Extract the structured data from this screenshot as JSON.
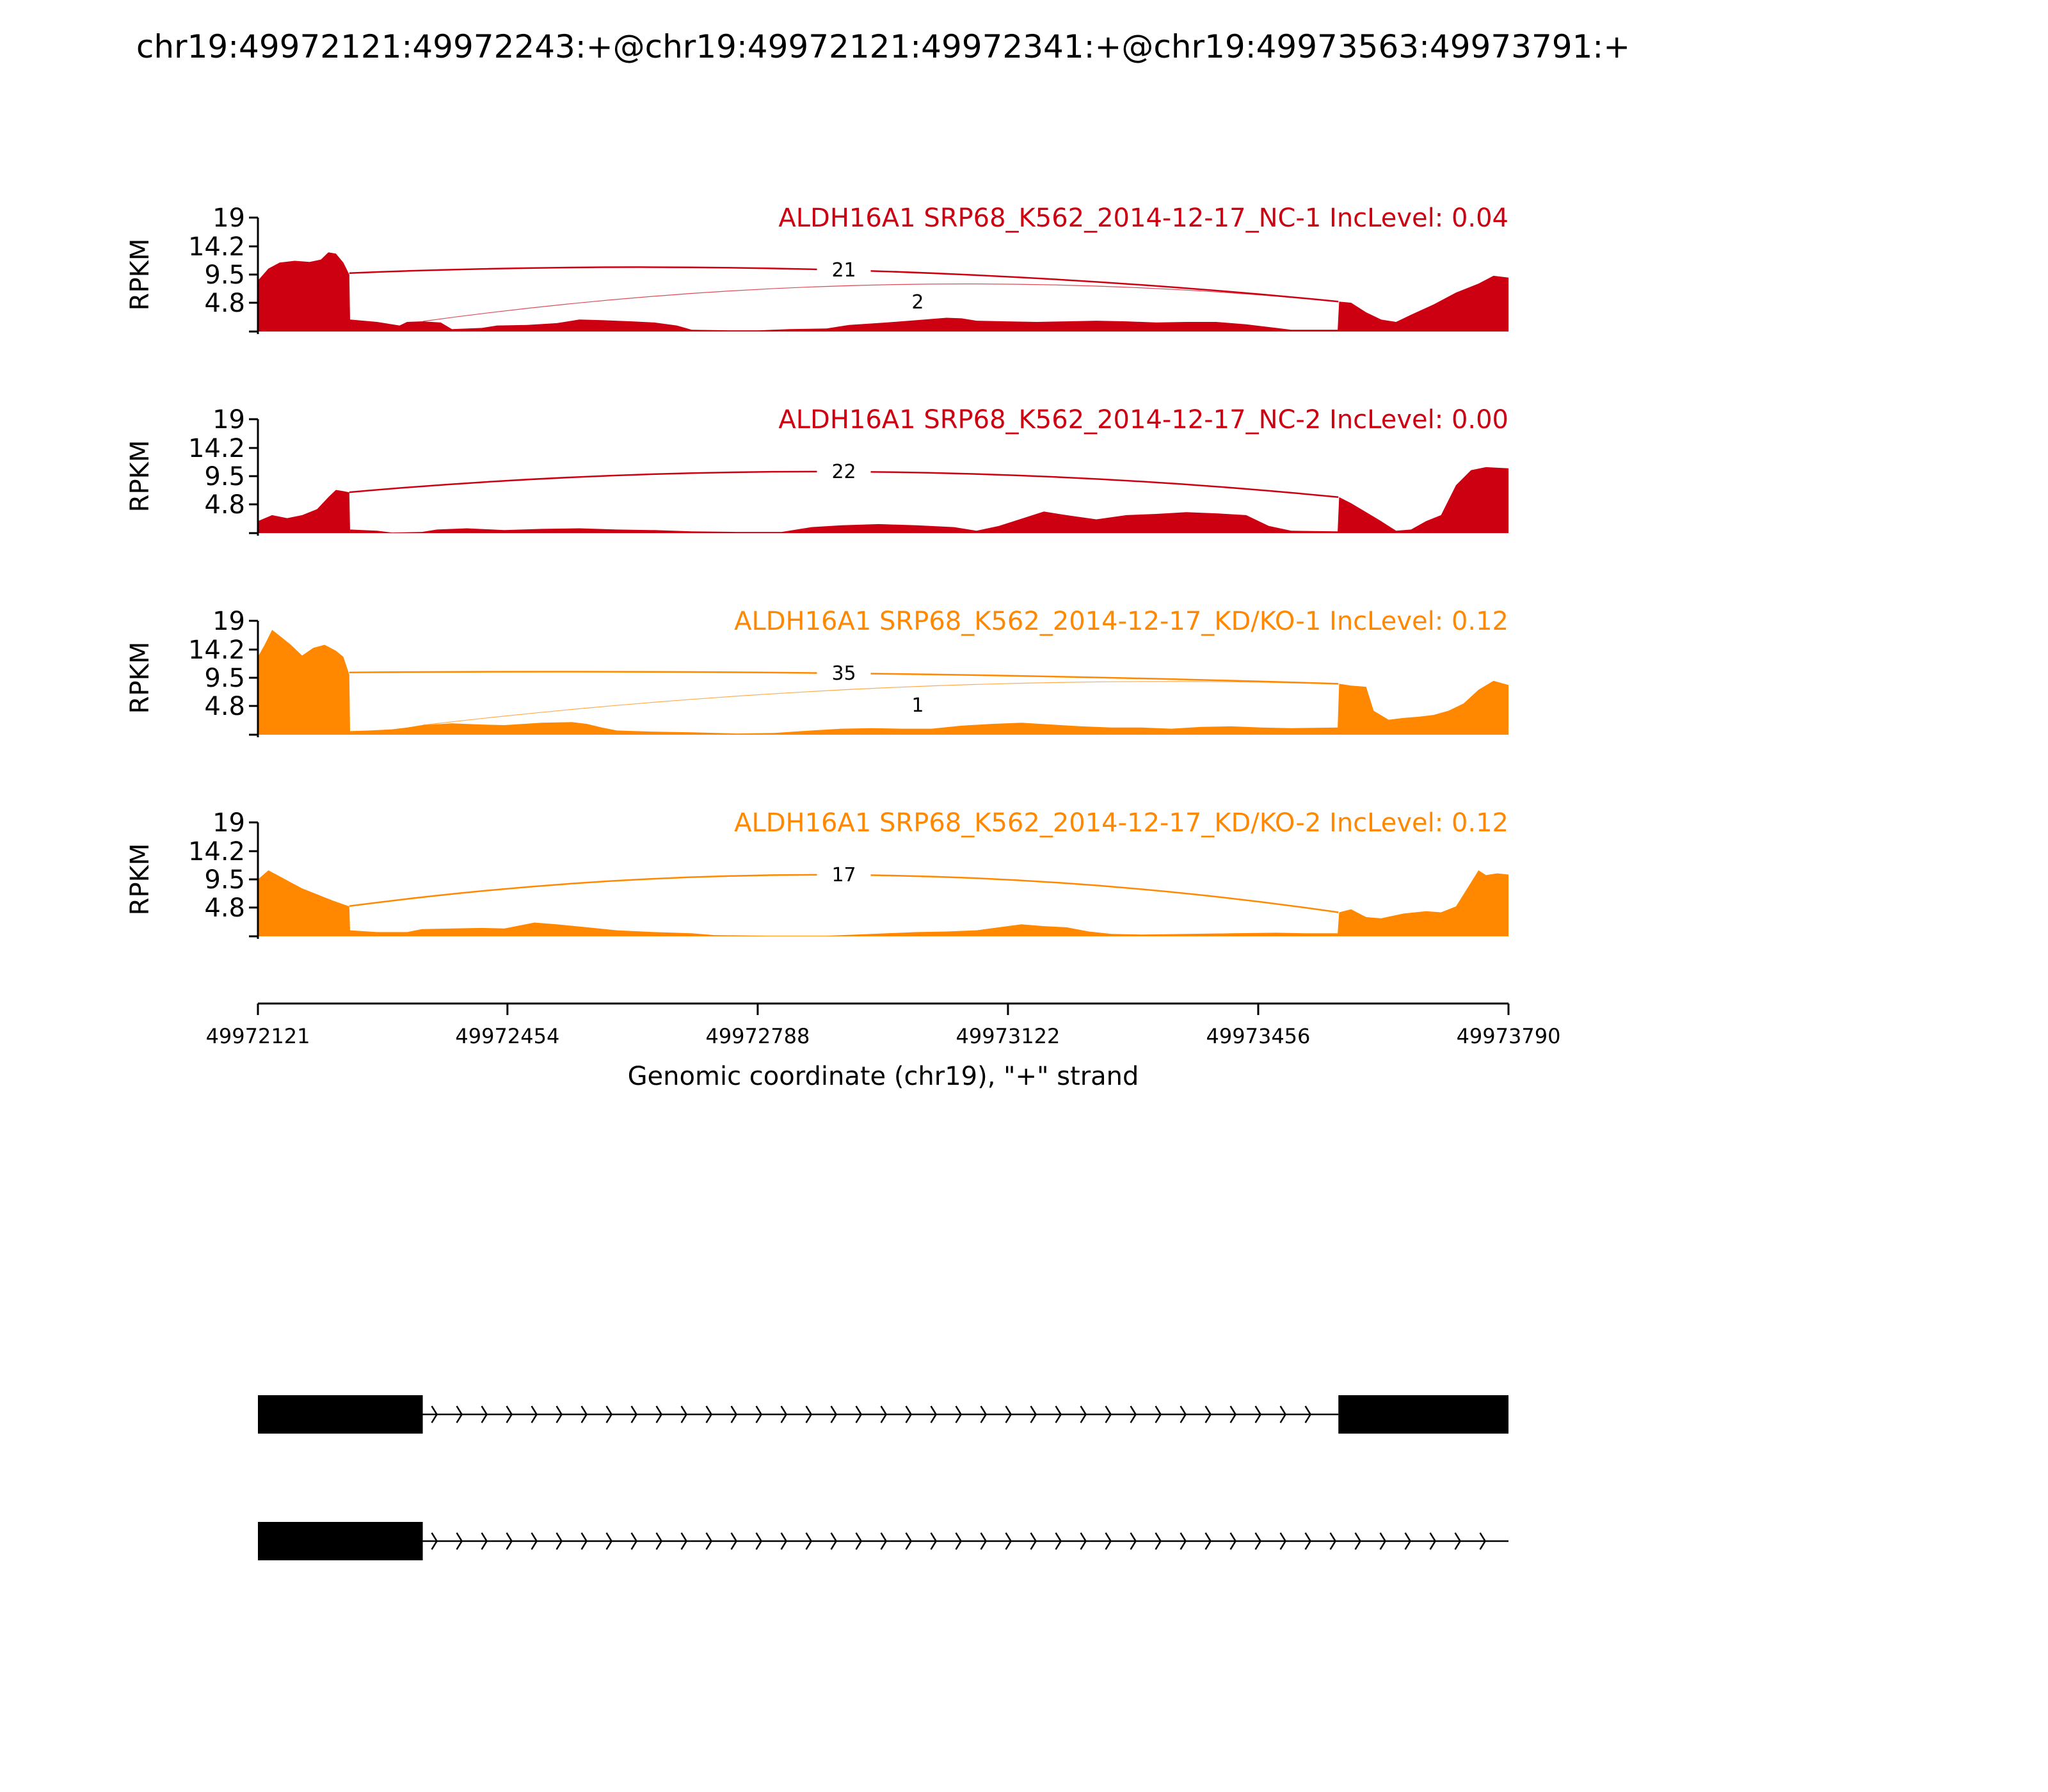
{
  "title": "chr19:49972121:49972243:+@chr19:49972121:49972341:+@chr19:49973563:49973791:+",
  "colors": {
    "nc": "#cc0011",
    "kd": "#ff8800",
    "axis": "#000000",
    "gene": "#000000"
  },
  "x_axis": {
    "label": "Genomic coordinate (chr19), \"+\" strand",
    "ticks": [
      49972121,
      49972454,
      49972788,
      49973122,
      49973456,
      49973790
    ],
    "tick_labels": [
      "49972121",
      "49972454",
      "49972788",
      "49973122",
      "49973456",
      "49973790"
    ]
  },
  "y_axis": {
    "label": "RPKM",
    "ticks": [
      4.8,
      9.5,
      14.2,
      19
    ],
    "tick_labels": [
      "4.8",
      "9.5",
      "14.2",
      "19"
    ]
  },
  "chart_data": {
    "type": "area",
    "xlim": [
      49972121,
      49973790
    ],
    "ylim": [
      0,
      19
    ],
    "tracks": [
      {
        "name": "ALDH16A1 SRP68_K562_2014-12-17_NC-1 IncLevel: 0.04",
        "group": "nc",
        "profile": [
          [
            49972121,
            8.5
          ],
          [
            49972135,
            10.5
          ],
          [
            49972150,
            11.5
          ],
          [
            49972170,
            11.8
          ],
          [
            49972190,
            11.6
          ],
          [
            49972205,
            12.0
          ],
          [
            49972215,
            13.2
          ],
          [
            49972225,
            13.0
          ],
          [
            49972235,
            11.5
          ],
          [
            49972243,
            9.5
          ],
          [
            49972244,
            2.0
          ],
          [
            49972280,
            1.6
          ],
          [
            49972310,
            1.0
          ],
          [
            49972320,
            1.6
          ],
          [
            49972340,
            1.7
          ],
          [
            49972365,
            1.5
          ],
          [
            49972380,
            0.4
          ],
          [
            49972420,
            0.6
          ],
          [
            49972440,
            1.0
          ],
          [
            49972480,
            1.1
          ],
          [
            49972520,
            1.4
          ],
          [
            49972550,
            2.0
          ],
          [
            49972580,
            1.9
          ],
          [
            49972620,
            1.7
          ],
          [
            49972650,
            1.5
          ],
          [
            49972680,
            1.0
          ],
          [
            49972700,
            0.3
          ],
          [
            49972750,
            0.2
          ],
          [
            49972790,
            0.2
          ],
          [
            49972830,
            0.4
          ],
          [
            49972880,
            0.5
          ],
          [
            49972910,
            1.1
          ],
          [
            49972960,
            1.5
          ],
          [
            49973000,
            1.9
          ],
          [
            49973040,
            2.3
          ],
          [
            49973060,
            2.2
          ],
          [
            49973080,
            1.8
          ],
          [
            49973120,
            1.7
          ],
          [
            49973160,
            1.6
          ],
          [
            49973200,
            1.7
          ],
          [
            49973240,
            1.8
          ],
          [
            49973280,
            1.7
          ],
          [
            49973320,
            1.5
          ],
          [
            49973360,
            1.6
          ],
          [
            49973400,
            1.6
          ],
          [
            49973440,
            1.2
          ],
          [
            49973480,
            0.6
          ],
          [
            49973500,
            0.3
          ],
          [
            49973562,
            0.3
          ],
          [
            49973564,
            5.0
          ],
          [
            49973580,
            4.8
          ],
          [
            49973600,
            3.2
          ],
          [
            49973620,
            2.0
          ],
          [
            49973640,
            1.6
          ],
          [
            49973660,
            2.8
          ],
          [
            49973690,
            4.5
          ],
          [
            49973720,
            6.5
          ],
          [
            49973750,
            8.0
          ],
          [
            49973770,
            9.3
          ],
          [
            49973790,
            9.0
          ]
        ],
        "junctions": [
          {
            "from": 49972243,
            "to": 49973563,
            "count": "21"
          },
          {
            "from": 49972341,
            "to": 49973563,
            "count": "2"
          }
        ]
      },
      {
        "name": "ALDH16A1 SRP68_K562_2014-12-17_NC-2 IncLevel: 0.00",
        "group": "nc",
        "profile": [
          [
            49972121,
            2.0
          ],
          [
            49972140,
            3.0
          ],
          [
            49972160,
            2.5
          ],
          [
            49972180,
            3.0
          ],
          [
            49972200,
            4.0
          ],
          [
            49972215,
            6.0
          ],
          [
            49972225,
            7.2
          ],
          [
            49972235,
            7.0
          ],
          [
            49972243,
            6.8
          ],
          [
            49972244,
            0.6
          ],
          [
            49972280,
            0.4
          ],
          [
            49972300,
            0.1
          ],
          [
            49972340,
            0.2
          ],
          [
            49972360,
            0.6
          ],
          [
            49972400,
            0.8
          ],
          [
            49972450,
            0.5
          ],
          [
            49972500,
            0.7
          ],
          [
            49972550,
            0.8
          ],
          [
            49972600,
            0.6
          ],
          [
            49972650,
            0.5
          ],
          [
            49972700,
            0.3
          ],
          [
            49972760,
            0.2
          ],
          [
            49972820,
            0.2
          ],
          [
            49972860,
            1.0
          ],
          [
            49972900,
            1.3
          ],
          [
            49972950,
            1.5
          ],
          [
            49973000,
            1.3
          ],
          [
            49973050,
            1.0
          ],
          [
            49973080,
            0.4
          ],
          [
            49973110,
            1.2
          ],
          [
            49973140,
            2.4
          ],
          [
            49973170,
            3.6
          ],
          [
            49973200,
            3.0
          ],
          [
            49973240,
            2.3
          ],
          [
            49973280,
            3.0
          ],
          [
            49973320,
            3.2
          ],
          [
            49973360,
            3.5
          ],
          [
            49973400,
            3.3
          ],
          [
            49973440,
            3.0
          ],
          [
            49973470,
            1.2
          ],
          [
            49973500,
            0.4
          ],
          [
            49973562,
            0.3
          ],
          [
            49973564,
            6.0
          ],
          [
            49973580,
            5.0
          ],
          [
            49973600,
            3.5
          ],
          [
            49973620,
            2.0
          ],
          [
            49973640,
            0.4
          ],
          [
            49973660,
            0.6
          ],
          [
            49973680,
            2.0
          ],
          [
            49973700,
            3.0
          ],
          [
            49973720,
            8.0
          ],
          [
            49973740,
            10.5
          ],
          [
            49973760,
            11.0
          ],
          [
            49973790,
            10.8
          ]
        ],
        "junctions": [
          {
            "from": 49972243,
            "to": 49973563,
            "count": "22"
          }
        ]
      },
      {
        "name": "ALDH16A1 SRP68_K562_2014-12-17_KD/KO-1 IncLevel: 0.12",
        "group": "kd",
        "profile": [
          [
            49972121,
            13.0
          ],
          [
            49972130,
            15.0
          ],
          [
            49972140,
            17.5
          ],
          [
            49972150,
            16.5
          ],
          [
            49972165,
            15.0
          ],
          [
            49972180,
            13.2
          ],
          [
            49972195,
            14.5
          ],
          [
            49972210,
            15.0
          ],
          [
            49972225,
            14.0
          ],
          [
            49972235,
            13.0
          ],
          [
            49972243,
            10.0
          ],
          [
            49972244,
            0.6
          ],
          [
            49972270,
            0.7
          ],
          [
            49972300,
            0.9
          ],
          [
            49972320,
            1.2
          ],
          [
            49972340,
            1.6
          ],
          [
            49972380,
            1.9
          ],
          [
            49972420,
            1.7
          ],
          [
            49972450,
            1.6
          ],
          [
            49972500,
            2.0
          ],
          [
            49972540,
            2.1
          ],
          [
            49972560,
            1.8
          ],
          [
            49972580,
            1.2
          ],
          [
            49972600,
            0.7
          ],
          [
            49972650,
            0.5
          ],
          [
            49972700,
            0.4
          ],
          [
            49972760,
            0.2
          ],
          [
            49972810,
            0.3
          ],
          [
            49972860,
            0.7
          ],
          [
            49972900,
            1.0
          ],
          [
            49972940,
            1.1
          ],
          [
            49972980,
            1.0
          ],
          [
            49973020,
            1.0
          ],
          [
            49973060,
            1.5
          ],
          [
            49973100,
            1.8
          ],
          [
            49973140,
            2.0
          ],
          [
            49973180,
            1.7
          ],
          [
            49973220,
            1.4
          ],
          [
            49973260,
            1.2
          ],
          [
            49973300,
            1.2
          ],
          [
            49973340,
            1.0
          ],
          [
            49973380,
            1.3
          ],
          [
            49973420,
            1.4
          ],
          [
            49973460,
            1.2
          ],
          [
            49973500,
            1.1
          ],
          [
            49973562,
            1.2
          ],
          [
            49973564,
            8.5
          ],
          [
            49973580,
            8.2
          ],
          [
            49973600,
            8.0
          ],
          [
            49973610,
            4.0
          ],
          [
            49973630,
            2.5
          ],
          [
            49973650,
            2.8
          ],
          [
            49973670,
            3.0
          ],
          [
            49973690,
            3.3
          ],
          [
            49973710,
            4.0
          ],
          [
            49973730,
            5.2
          ],
          [
            49973750,
            7.5
          ],
          [
            49973770,
            9.0
          ],
          [
            49973790,
            8.3
          ]
        ],
        "junctions": [
          {
            "from": 49972243,
            "to": 49973563,
            "count": "35"
          },
          {
            "from": 49972341,
            "to": 49973563,
            "count": "1"
          }
        ]
      },
      {
        "name": "ALDH16A1 SRP68_K562_2014-12-17_KD/KO-2 IncLevel: 0.12",
        "group": "kd",
        "profile": [
          [
            49972121,
            9.5
          ],
          [
            49972135,
            11.0
          ],
          [
            49972150,
            10.0
          ],
          [
            49972165,
            9.0
          ],
          [
            49972180,
            8.0
          ],
          [
            49972200,
            7.0
          ],
          [
            49972220,
            6.0
          ],
          [
            49972243,
            5.0
          ],
          [
            49972244,
            1.0
          ],
          [
            49972280,
            0.7
          ],
          [
            49972320,
            0.7
          ],
          [
            49972340,
            1.2
          ],
          [
            49972380,
            1.3
          ],
          [
            49972420,
            1.4
          ],
          [
            49972450,
            1.3
          ],
          [
            49972490,
            2.3
          ],
          [
            49972520,
            2.0
          ],
          [
            49972560,
            1.5
          ],
          [
            49972600,
            1.0
          ],
          [
            49972650,
            0.7
          ],
          [
            49972700,
            0.5
          ],
          [
            49972730,
            0.2
          ],
          [
            49972800,
            0.1
          ],
          [
            49972880,
            0.1
          ],
          [
            49972920,
            0.3
          ],
          [
            49972960,
            0.5
          ],
          [
            49973000,
            0.7
          ],
          [
            49973040,
            0.8
          ],
          [
            49973080,
            1.0
          ],
          [
            49973110,
            1.5
          ],
          [
            49973140,
            2.0
          ],
          [
            49973170,
            1.7
          ],
          [
            49973200,
            1.5
          ],
          [
            49973230,
            0.8
          ],
          [
            49973260,
            0.4
          ],
          [
            49973300,
            0.3
          ],
          [
            49973360,
            0.4
          ],
          [
            49973420,
            0.5
          ],
          [
            49973480,
            0.6
          ],
          [
            49973520,
            0.5
          ],
          [
            49973562,
            0.5
          ],
          [
            49973564,
            4.0
          ],
          [
            49973580,
            4.5
          ],
          [
            49973600,
            3.2
          ],
          [
            49973620,
            3.0
          ],
          [
            49973650,
            3.8
          ],
          [
            49973680,
            4.2
          ],
          [
            49973700,
            4.0
          ],
          [
            49973720,
            5.0
          ],
          [
            49973735,
            8.0
          ],
          [
            49973750,
            11.0
          ],
          [
            49973760,
            10.2
          ],
          [
            49973775,
            10.5
          ],
          [
            49973790,
            10.3
          ]
        ],
        "junctions": [
          {
            "from": 49972243,
            "to": 49973563,
            "count": "17"
          }
        ]
      }
    ],
    "isoforms": [
      {
        "exons": [
          [
            49972121,
            49972341
          ],
          [
            49973563,
            49973790
          ]
        ],
        "intron": [
          49972341,
          49973563
        ]
      },
      {
        "exons": [
          [
            49972121,
            49972341
          ]
        ],
        "intron": [
          49972341,
          49973790
        ]
      }
    ]
  }
}
